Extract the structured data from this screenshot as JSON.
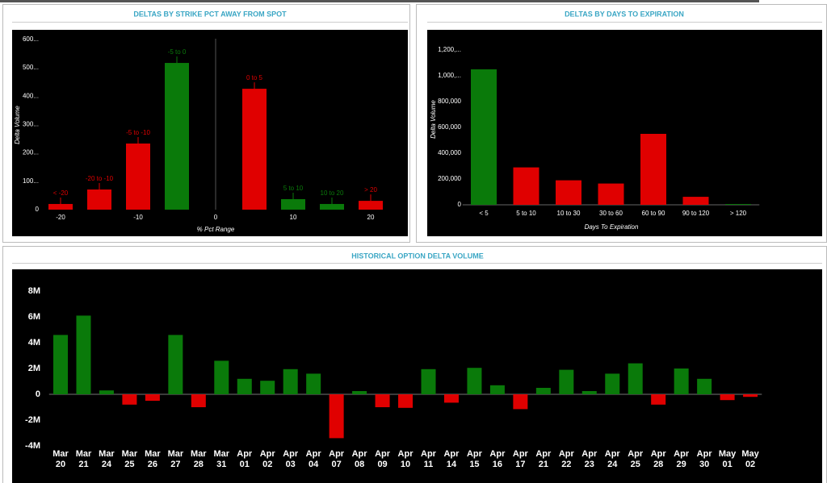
{
  "chart_data": [
    {
      "type": "bar",
      "title": "DELTAS BY STRIKE PCT AWAY FROM SPOT",
      "y_label": "Delta Volume",
      "x_label": "% Pct Range",
      "categories": [
        "< -20",
        "-20 to -10",
        "-5 to -10",
        "-5 to 0",
        "0 to 5",
        "5 to 10",
        "10 to 20",
        "> 20"
      ],
      "x": [
        -20,
        -15,
        -10,
        -5,
        5,
        10,
        15,
        20
      ],
      "values": [
        20,
        71,
        233,
        517,
        426,
        37,
        20,
        31
      ],
      "colors": [
        "#e00000",
        "#e00000",
        "#e00000",
        "#0a7a0a",
        "#e00000",
        "#0a7a0a",
        "#0a7a0a",
        "#e00000"
      ],
      "xlim": [
        -22.5,
        22.5
      ],
      "xticks": [
        -20,
        -10,
        0,
        10,
        20
      ],
      "ylim": [
        0,
        620
      ],
      "yticks": [
        0,
        {
          "value": 100,
          "label": "100..."
        },
        {
          "value": 200,
          "label": "200..."
        },
        {
          "value": 300,
          "label": "300..."
        },
        {
          "value": 400,
          "label": "400..."
        },
        {
          "value": 500,
          "label": "500..."
        },
        {
          "value": 600,
          "label": "600..."
        }
      ]
    },
    {
      "type": "bar",
      "title": "DELTAS BY DAYS TO EXPIRATION",
      "y_label": "Delta Volume",
      "x_label": "Days To Expiration",
      "categories": [
        "< 5",
        "5 to 10",
        "10 to 30",
        "30 to 60",
        "60 to 90",
        "90 to 120",
        "> 120"
      ],
      "values": [
        1050000,
        290000,
        190000,
        165000,
        550000,
        62000,
        6000
      ],
      "colors": [
        "#0a7a0a",
        "#e00000",
        "#e00000",
        "#e00000",
        "#e00000",
        "#e00000",
        "#0a7a0a"
      ],
      "ylim": [
        0,
        1300000
      ],
      "yticks": [
        0,
        {
          "value": 200000,
          "label": "200,000"
        },
        {
          "value": 400000,
          "label": "400,000"
        },
        {
          "value": 600000,
          "label": "600,000"
        },
        {
          "value": 800000,
          "label": "800,000"
        },
        {
          "value": 1000000,
          "label": "1,000,..."
        },
        {
          "value": 1200000,
          "label": "1,200,..."
        }
      ]
    },
    {
      "type": "bar",
      "title": "HISTORICAL OPTION DELTA VOLUME",
      "categories": [
        "Mar 20",
        "Mar 21",
        "Mar 24",
        "Mar 25",
        "Mar 26",
        "Mar 27",
        "Mar 28",
        "Mar 31",
        "Apr 01",
        "Apr 02",
        "Apr 03",
        "Apr 04",
        "Apr 07",
        "Apr 08",
        "Apr 09",
        "Apr 10",
        "Apr 11",
        "Apr 14",
        "Apr 15",
        "Apr 16",
        "Apr 17",
        "Apr 21",
        "Apr 22",
        "Apr 23",
        "Apr 24",
        "Apr 25",
        "Apr 28",
        "Apr 29",
        "Apr 30",
        "May 01",
        "May 02"
      ],
      "values": [
        4.6,
        6.1,
        0.3,
        -0.8,
        -0.5,
        4.6,
        -1.0,
        2.6,
        1.2,
        1.05,
        1.95,
        1.6,
        -3.4,
        0.25,
        -1.0,
        -1.05,
        1.95,
        -0.65,
        2.05,
        0.7,
        -1.15,
        0.5,
        1.9,
        0.25,
        1.6,
        2.4,
        -0.8,
        2.0,
        1.2,
        -0.45,
        -0.2
      ],
      "positive_color": "#0a7a0a",
      "negative_color": "#e00000",
      "ylim": [
        -4.5,
        8.5
      ],
      "yticks": [
        {
          "value": -4,
          "label": "-4M"
        },
        {
          "value": -2,
          "label": "-2M"
        },
        0,
        {
          "value": 2,
          "label": "2M"
        },
        {
          "value": 4,
          "label": "4M"
        },
        {
          "value": 6,
          "label": "6M"
        },
        {
          "value": 8,
          "label": "8M"
        }
      ]
    }
  ]
}
